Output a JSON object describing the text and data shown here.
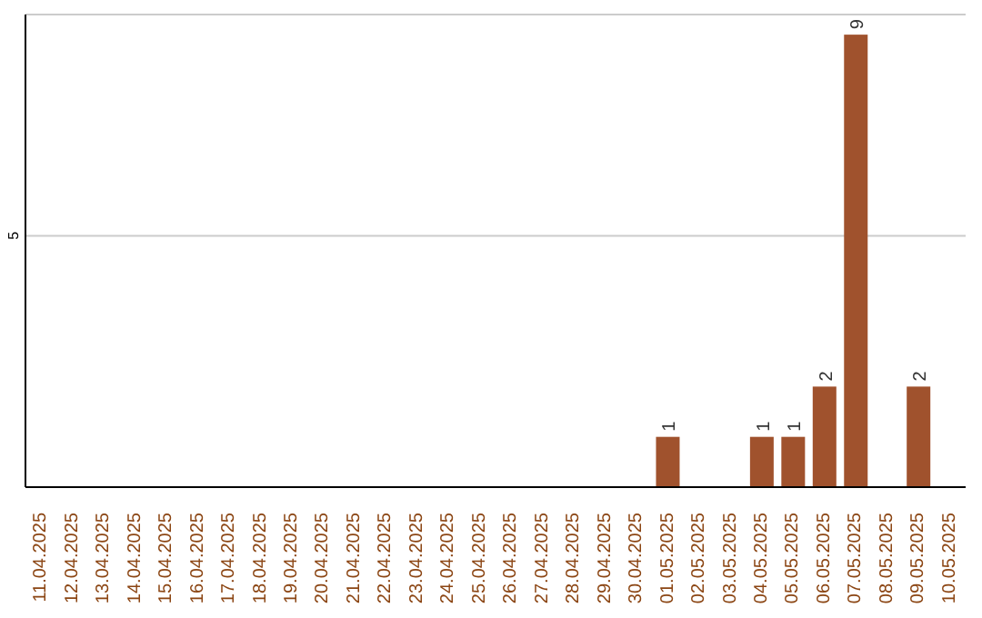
{
  "chart_data": {
    "type": "bar",
    "categories": [
      "11.04.2025",
      "12.04.2025",
      "13.04.2025",
      "14.04.2025",
      "15.04.2025",
      "16.04.2025",
      "17.04.2025",
      "18.04.2025",
      "19.04.2025",
      "20.04.2025",
      "21.04.2025",
      "22.04.2025",
      "23.04.2025",
      "24.04.2025",
      "25.04.2025",
      "26.04.2025",
      "27.04.2025",
      "28.04.2025",
      "29.04.2025",
      "30.04.2025",
      "01.05.2025",
      "02.05.2025",
      "03.05.2025",
      "04.05.2025",
      "05.05.2025",
      "06.05.2025",
      "07.05.2025",
      "08.05.2025",
      "09.05.2025",
      "10.05.2025"
    ],
    "values": [
      null,
      null,
      null,
      null,
      null,
      null,
      null,
      null,
      null,
      null,
      null,
      null,
      null,
      null,
      null,
      null,
      null,
      null,
      null,
      null,
      1,
      null,
      null,
      1,
      1,
      2,
      9,
      null,
      2,
      null
    ],
    "data_labels": true,
    "color": "#a0522d",
    "ylim": [
      0,
      9.4
    ],
    "yticks": [
      5
    ],
    "grid": "y"
  }
}
